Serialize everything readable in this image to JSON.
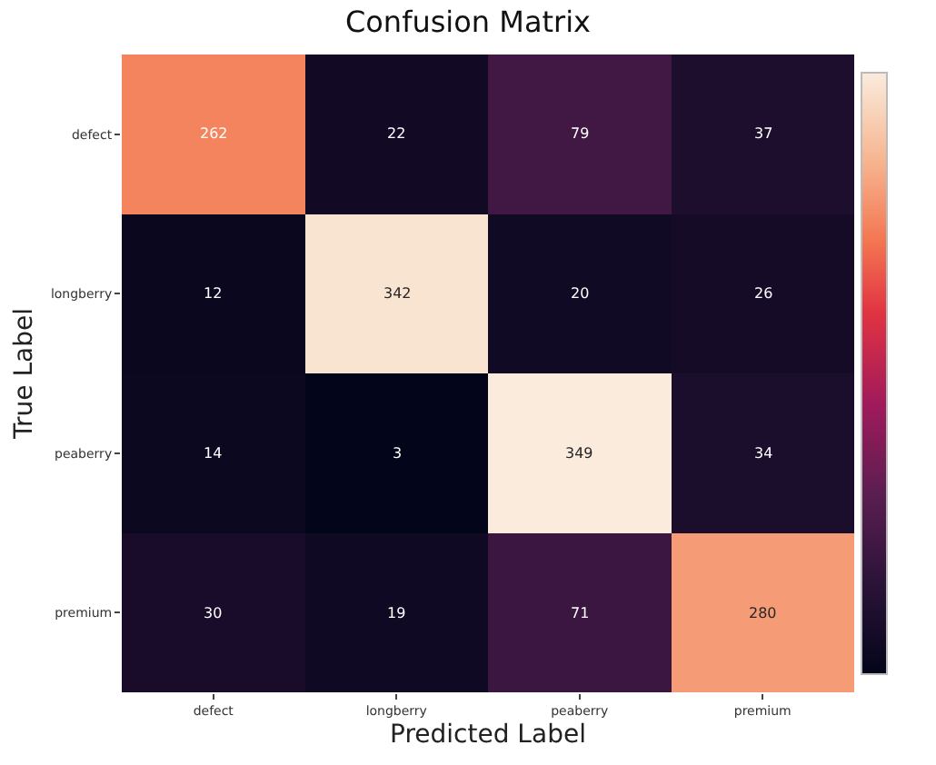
{
  "chart_data": {
    "type": "heatmap",
    "title": "Confusion Matrix",
    "xlabel": "Predicted Label",
    "ylabel": "True Label",
    "categories": [
      "defect",
      "longberry",
      "peaberry",
      "premium"
    ],
    "y_categories": [
      "defect",
      "longberry",
      "peaberry",
      "premium"
    ],
    "cells": [
      [
        262,
        22,
        79,
        37
      ],
      [
        12,
        342,
        20,
        26
      ],
      [
        14,
        3,
        349,
        34
      ],
      [
        30,
        19,
        71,
        280
      ]
    ],
    "data_labels": true
  }
}
